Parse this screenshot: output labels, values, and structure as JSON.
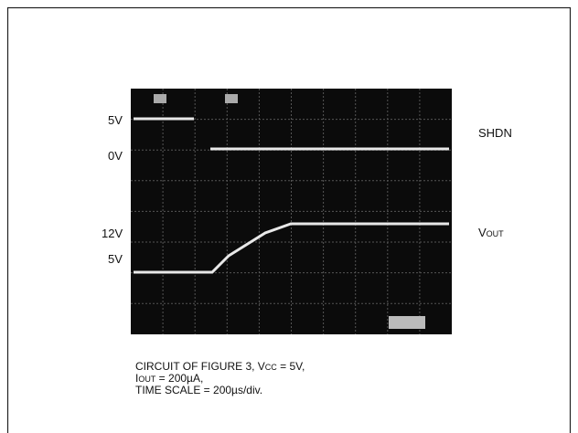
{
  "scope": {
    "left_labels": [
      "5V",
      "0V",
      "12V",
      "5V"
    ],
    "shdn_label": "SHDN",
    "vout_label": {
      "main": "V",
      "sub": "OUT"
    }
  },
  "caption": {
    "line1": {
      "a": "CIRCUIT OF FIGURE 3, V",
      "sub": "CC",
      "b": " = 5V,"
    },
    "line2": {
      "a": "I",
      "sub": "OUT",
      "b": " = 200µA,"
    },
    "line3": "TIME SCALE = 200µs/div."
  }
}
